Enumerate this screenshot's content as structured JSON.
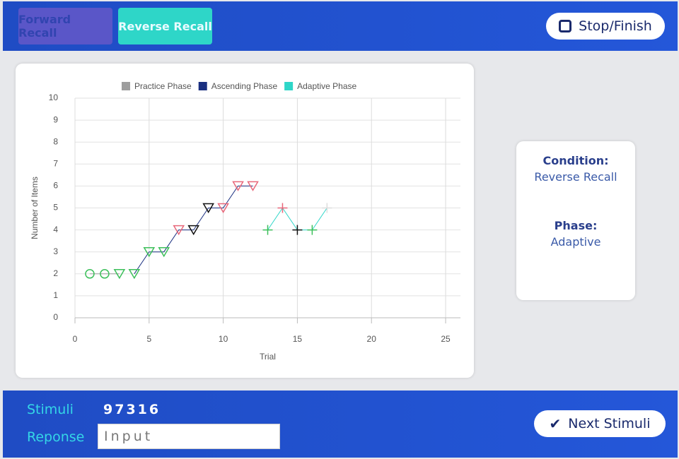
{
  "header": {
    "tabs": [
      "Forward Recall",
      "Reverse Recall"
    ],
    "stop_button": "Stop/Finish"
  },
  "chart_data": {
    "type": "scatter",
    "x_label": "Trial",
    "y_label": "Number of Items",
    "xlim": [
      0,
      26
    ],
    "xticks": [
      0,
      5,
      10,
      15,
      20,
      25
    ],
    "ylim": [
      0,
      10
    ],
    "yticks": [
      0,
      1,
      2,
      3,
      4,
      5,
      6,
      7,
      8,
      9,
      10
    ],
    "grid": true,
    "legend": "top",
    "series": [
      {
        "name": "Practice Phase",
        "color": "#9e9e9e",
        "x": [
          1,
          2,
          3
        ],
        "values": [
          2,
          2,
          2
        ],
        "markers": [
          "circle",
          "circle",
          "triangle-down"
        ],
        "marker_colors": [
          "#3cbf5a",
          "#3cbf5a",
          "#3cbf5a"
        ]
      },
      {
        "name": "Ascending Phase",
        "color": "#1a2f80",
        "x": [
          4,
          5,
          6,
          7,
          8,
          9,
          10,
          11,
          12
        ],
        "values": [
          2,
          3,
          3,
          4,
          4,
          5,
          5,
          6,
          6
        ],
        "markers": [
          "triangle-down",
          "triangle-down",
          "triangle-down",
          "triangle-down",
          "triangle-down",
          "triangle-down",
          "triangle-down",
          "triangle-down",
          "triangle-down"
        ],
        "marker_colors": [
          "#3cbf5a",
          "#3cbf5a",
          "#3cbf5a",
          "#e8677a",
          "#111111",
          "#111111",
          "#e8677a",
          "#e8677a",
          "#e8677a"
        ]
      },
      {
        "name": "Adaptive Phase",
        "color": "#2ed6c8",
        "x": [
          13,
          14,
          15,
          16,
          17
        ],
        "values": [
          4,
          5,
          4,
          4,
          5
        ],
        "markers": [
          "plus",
          "plus",
          "plus",
          "plus",
          "plus"
        ],
        "marker_colors": [
          "#3cbf5a",
          "#e8677a",
          "#111111",
          "#3cbf5a",
          "#dddddd"
        ]
      }
    ]
  },
  "info": {
    "condition_label": "Condition:",
    "condition": "Reverse Recall",
    "phase_label": "Phase:",
    "phase": "Adaptive"
  },
  "footer": {
    "stimuli_label": "Stimuli",
    "stimuli": "97316",
    "response_label": "Reponse",
    "response_placeholder": "Input",
    "next_button": "Next Stimuli"
  }
}
